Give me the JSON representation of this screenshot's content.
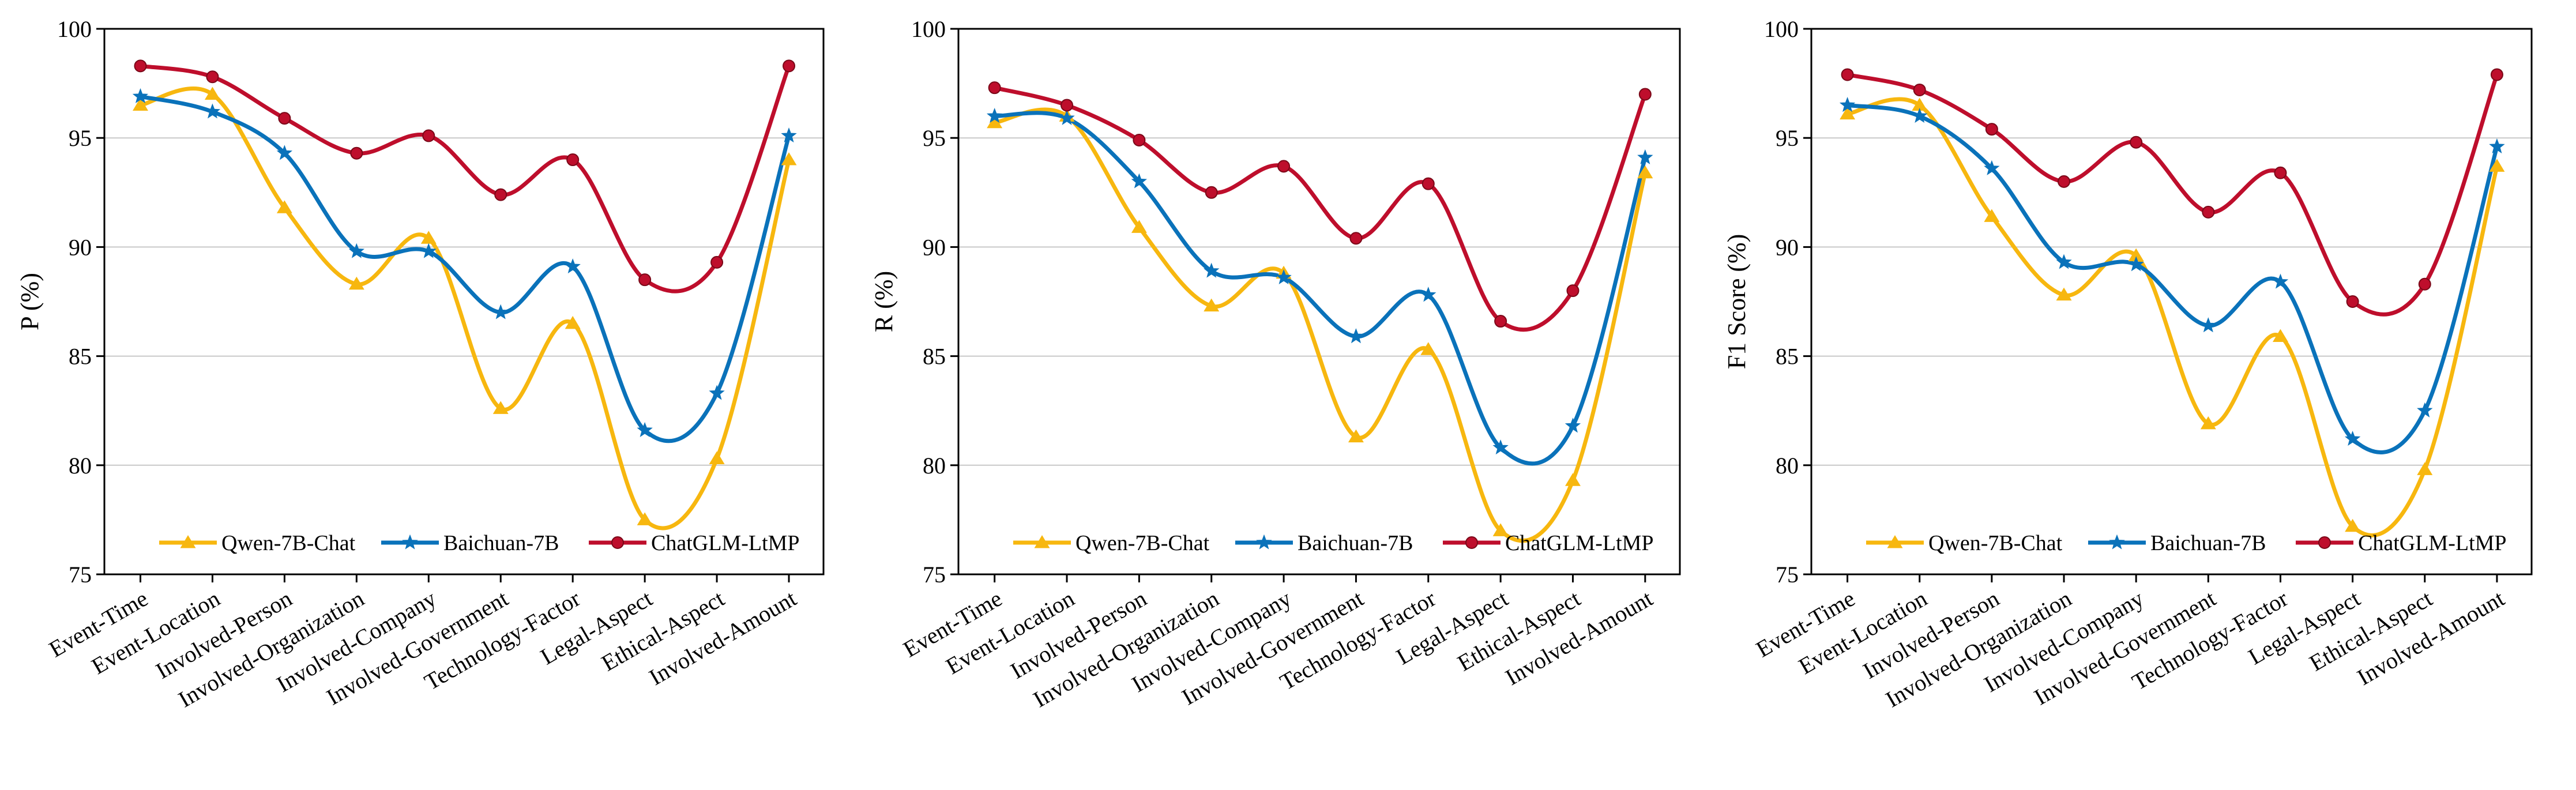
{
  "colors": {
    "Qwen-7B-Chat": "#F7B70F",
    "Baichuan-7B": "#0A72BA",
    "ChatGLM-LtMP": "#BE0E2C",
    "grid": "#c8c8c8",
    "axis": "#000000"
  },
  "chart_data": [
    {
      "type": "line",
      "title": "",
      "xlabel": "",
      "ylabel": "P (%)",
      "ylim": [
        75,
        100
      ],
      "yticks": [
        75,
        80,
        85,
        90,
        95,
        100
      ],
      "grid": true,
      "legend_position": "bottom",
      "categories": [
        "Event-Time",
        "Event-Location",
        "Involved-Person",
        "Involved-Organization",
        "Involved-Company",
        "Involved-Government",
        "Technology-Factor",
        "Legal-Aspect",
        "Ethical-Aspect",
        "Involved-Amount"
      ],
      "series": [
        {
          "name": "Qwen-7B-Chat",
          "marker": "triangle",
          "values": [
            96.5,
            97.0,
            91.8,
            88.3,
            90.4,
            82.6,
            86.5,
            77.5,
            80.3,
            94.0
          ]
        },
        {
          "name": "Baichuan-7B",
          "marker": "star",
          "values": [
            96.9,
            96.2,
            94.3,
            89.8,
            89.8,
            87.0,
            89.1,
            81.6,
            83.3,
            95.1
          ]
        },
        {
          "name": "ChatGLM-LtMP",
          "marker": "circle",
          "values": [
            98.3,
            97.8,
            95.9,
            94.3,
            95.1,
            92.4,
            94.0,
            88.5,
            89.3,
            98.3
          ]
        }
      ]
    },
    {
      "type": "line",
      "title": "",
      "xlabel": "",
      "ylabel": "R (%)",
      "ylim": [
        75,
        100
      ],
      "yticks": [
        75,
        80,
        85,
        90,
        95,
        100
      ],
      "grid": true,
      "legend_position": "bottom",
      "categories": [
        "Event-Time",
        "Event-Location",
        "Involved-Person",
        "Involved-Organization",
        "Involved-Company",
        "Involved-Government",
        "Technology-Factor",
        "Legal-Aspect",
        "Ethical-Aspect",
        "Involved-Amount"
      ],
      "series": [
        {
          "name": "Qwen-7B-Chat",
          "marker": "triangle",
          "values": [
            95.7,
            96.0,
            90.9,
            87.3,
            88.8,
            81.3,
            85.3,
            77.0,
            79.3,
            93.4
          ]
        },
        {
          "name": "Baichuan-7B",
          "marker": "star",
          "values": [
            96.0,
            95.9,
            93.0,
            88.9,
            88.6,
            85.9,
            87.8,
            80.8,
            81.8,
            94.1
          ]
        },
        {
          "name": "ChatGLM-LtMP",
          "marker": "circle",
          "values": [
            97.3,
            96.5,
            94.9,
            92.5,
            93.7,
            90.4,
            92.9,
            86.6,
            88.0,
            97.0
          ]
        }
      ]
    },
    {
      "type": "line",
      "title": "",
      "xlabel": "",
      "ylabel": "F1 Score (%)",
      "ylim": [
        75,
        100
      ],
      "yticks": [
        75,
        80,
        85,
        90,
        95,
        100
      ],
      "grid": true,
      "legend_position": "bottom",
      "categories": [
        "Event-Time",
        "Event-Location",
        "Involved-Person",
        "Involved-Organization",
        "Involved-Company",
        "Involved-Government",
        "Technology-Factor",
        "Legal-Aspect",
        "Ethical-Aspect",
        "Involved-Amount"
      ],
      "series": [
        {
          "name": "Qwen-7B-Chat",
          "marker": "triangle",
          "values": [
            96.1,
            96.5,
            91.4,
            87.8,
            89.6,
            81.9,
            85.9,
            77.2,
            79.8,
            93.7
          ]
        },
        {
          "name": "Baichuan-7B",
          "marker": "star",
          "values": [
            96.5,
            96.0,
            93.6,
            89.3,
            89.2,
            86.4,
            88.4,
            81.2,
            82.5,
            94.6
          ]
        },
        {
          "name": "ChatGLM-LtMP",
          "marker": "circle",
          "values": [
            97.9,
            97.2,
            95.4,
            93.0,
            94.8,
            91.6,
            93.4,
            87.5,
            88.3,
            97.9
          ]
        }
      ]
    }
  ]
}
